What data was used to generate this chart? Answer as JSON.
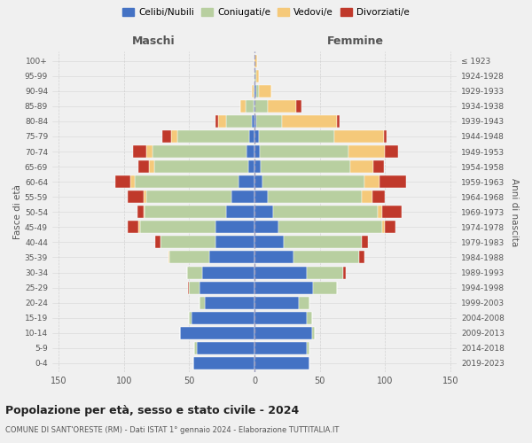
{
  "age_groups_bottom_to_top": [
    "0-4",
    "5-9",
    "10-14",
    "15-19",
    "20-24",
    "25-29",
    "30-34",
    "35-39",
    "40-44",
    "45-49",
    "50-54",
    "55-59",
    "60-64",
    "65-69",
    "70-74",
    "75-79",
    "80-84",
    "85-89",
    "90-94",
    "95-99",
    "100+"
  ],
  "birth_years_bottom_to_top": [
    "2019-2023",
    "2014-2018",
    "2009-2013",
    "2004-2008",
    "1999-2003",
    "1994-1998",
    "1989-1993",
    "1984-1988",
    "1979-1983",
    "1974-1978",
    "1969-1973",
    "1964-1968",
    "1959-1963",
    "1954-1958",
    "1949-1953",
    "1944-1948",
    "1939-1943",
    "1934-1938",
    "1929-1933",
    "1924-1928",
    "≤ 1923"
  ],
  "colors": {
    "celibi": "#4472c4",
    "coniugati": "#b8cfa0",
    "vedovi": "#f5c97a",
    "divorziati": "#c0392b"
  },
  "maschi": {
    "celibi": [
      47,
      44,
      57,
      48,
      38,
      42,
      40,
      35,
      30,
      30,
      22,
      18,
      12,
      5,
      6,
      4,
      2,
      1,
      0,
      0,
      0
    ],
    "coniugati": [
      0,
      2,
      0,
      2,
      4,
      8,
      12,
      30,
      42,
      58,
      62,
      65,
      80,
      72,
      72,
      55,
      20,
      6,
      1,
      0,
      0
    ],
    "vedovi": [
      0,
      0,
      0,
      0,
      0,
      0,
      0,
      1,
      0,
      1,
      1,
      2,
      3,
      4,
      5,
      5,
      6,
      4,
      1,
      0,
      0
    ],
    "divorziati": [
      0,
      0,
      0,
      0,
      0,
      1,
      0,
      0,
      4,
      8,
      5,
      12,
      12,
      8,
      10,
      7,
      2,
      0,
      0,
      0,
      0
    ]
  },
  "femmine": {
    "celibi": [
      42,
      40,
      44,
      40,
      34,
      45,
      40,
      30,
      22,
      18,
      14,
      10,
      6,
      5,
      4,
      3,
      1,
      0,
      1,
      0,
      0
    ],
    "coniugati": [
      0,
      2,
      2,
      4,
      8,
      18,
      28,
      50,
      60,
      80,
      80,
      72,
      78,
      68,
      68,
      58,
      20,
      10,
      2,
      1,
      0
    ],
    "vedovi": [
      0,
      0,
      0,
      0,
      0,
      0,
      0,
      0,
      0,
      2,
      4,
      8,
      12,
      18,
      28,
      38,
      42,
      22,
      10,
      2,
      2
    ],
    "divorziati": [
      0,
      0,
      0,
      0,
      0,
      0,
      2,
      4,
      5,
      8,
      15,
      10,
      20,
      8,
      10,
      2,
      2,
      4,
      0,
      0,
      0
    ]
  },
  "title": "Popolazione per età, sesso e stato civile - 2024",
  "subtitle": "COMUNE DI SANT'ORESTE (RM) - Dati ISTAT 1° gennaio 2024 - Elaborazione TUTTITALIA.IT",
  "xlabel_left": "Maschi",
  "xlabel_right": "Femmine",
  "ylabel_left": "Fasce di età",
  "ylabel_right": "Anni di nascita",
  "xlim": 155,
  "bg_color": "#f0f0f0",
  "plot_bg": "#f0f0f0",
  "grid_color": "#cccccc"
}
